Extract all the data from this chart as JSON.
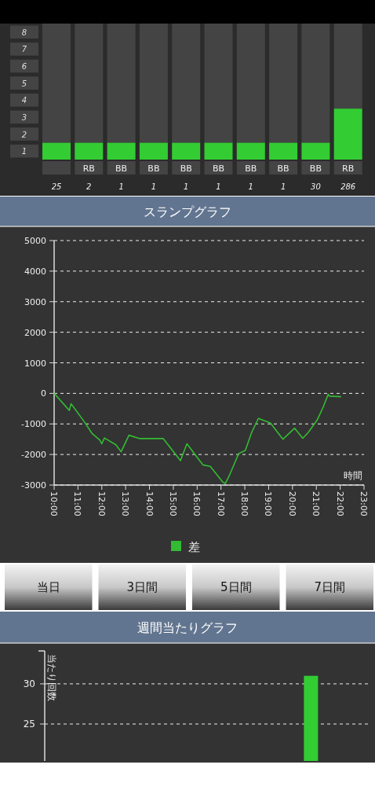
{
  "chart_data": [
    {
      "type": "bar",
      "stacked": true,
      "categories": [
        null,
        "RB",
        "BB",
        "BB",
        "BB",
        "BB",
        "BB",
        "BB",
        "BB",
        "RB"
      ],
      "series": [
        {
          "color": "#33cc33",
          "values": [
            1,
            1,
            1,
            1,
            1,
            1,
            1,
            1,
            1,
            3
          ]
        },
        {
          "color": "#444444",
          "values": [
            7,
            7,
            7,
            7,
            7,
            7,
            7,
            7,
            7,
            5
          ]
        }
      ],
      "ylim": [
        0,
        8
      ],
      "yticks": [
        {
          "value": 0.5,
          "label": "1"
        },
        {
          "value": 1.5,
          "label": "2"
        },
        {
          "value": 2.5,
          "label": "3"
        },
        {
          "value": 3.5,
          "label": "4"
        },
        {
          "value": 4.5,
          "label": "5"
        },
        {
          "value": 5.5,
          "label": "6"
        },
        {
          "value": 6.5,
          "label": "7"
        },
        {
          "value": 7.5,
          "label": "8"
        }
      ],
      "annotations": [
        "25",
        "2",
        "1",
        "1",
        "1",
        "1",
        "1",
        "1",
        "30",
        "286"
      ]
    },
    {
      "type": "line",
      "title": "スランプグラフ",
      "xlabel": "時間",
      "xlim": [
        10,
        23
      ],
      "xticks": [
        {
          "value": 10,
          "label": "10:00"
        },
        {
          "value": 11,
          "label": "11:00"
        },
        {
          "value": 12,
          "label": "12:00"
        },
        {
          "value": 13,
          "label": "13:00"
        },
        {
          "value": 14,
          "label": "14:00"
        },
        {
          "value": 15,
          "label": "15:00"
        },
        {
          "value": 16,
          "label": "16:00"
        },
        {
          "value": 17,
          "label": "17:00"
        },
        {
          "value": 18,
          "label": "18:00"
        },
        {
          "value": 19,
          "label": "19:00"
        },
        {
          "value": 20,
          "label": "20:00"
        },
        {
          "value": 21,
          "label": "21:00"
        },
        {
          "value": 22,
          "label": "22:00"
        },
        {
          "value": 23,
          "label": "23:00"
        }
      ],
      "ylim": [
        -3000,
        5000
      ],
      "yticks": [
        -3000,
        -2000,
        -1000,
        0,
        1000,
        2000,
        3000,
        4000,
        5000
      ],
      "grid": "y",
      "legend": "bottom",
      "line_style": "solid",
      "x": [
        10.0,
        10.64,
        10.71,
        11.24,
        11.59,
        11.92,
        12.0,
        12.11,
        12.59,
        12.81,
        13.14,
        13.6,
        14.58,
        15.3,
        15.57,
        16.24,
        16.55,
        17.07,
        17.18,
        17.35,
        17.74,
        18.02,
        18.29,
        18.57,
        19.07,
        19.6,
        20.09,
        20.43,
        20.67,
        21.03,
        21.28,
        21.5,
        21.54,
        22.04
      ],
      "series": [
        {
          "name": "差",
          "color": "#33bb33",
          "values": [
            0,
            -560,
            -340,
            -900,
            -1310,
            -1530,
            -1650,
            -1460,
            -1680,
            -1910,
            -1370,
            -1480,
            -1480,
            -2200,
            -1650,
            -2340,
            -2390,
            -2900,
            -2950,
            -2690,
            -1970,
            -1870,
            -1270,
            -820,
            -970,
            -1500,
            -1140,
            -1470,
            -1270,
            -880,
            -460,
            -30,
            -90,
            -110
          ]
        }
      ]
    },
    {
      "type": "other",
      "annotations": [
        "当日",
        "3日間",
        "5日間",
        "7日間"
      ]
    },
    {
      "type": "bar",
      "title": "週間当たりグラフ",
      "ylabel": "当たり回数",
      "categories": [
        null,
        null,
        null,
        null
      ],
      "values": [
        null,
        null,
        null,
        31
      ],
      "color": "#33cc33",
      "ylim": [
        20.4,
        34.1
      ],
      "yticks": [
        25,
        30
      ],
      "grid": "y"
    }
  ]
}
